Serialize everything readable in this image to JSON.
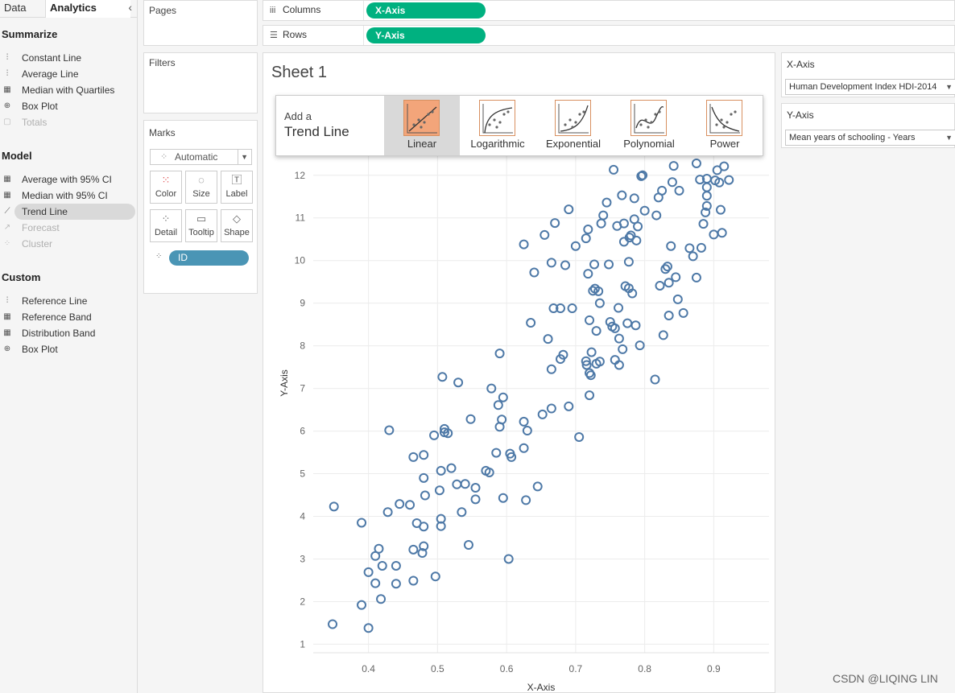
{
  "tabs": {
    "data": "Data",
    "analytics": "Analytics"
  },
  "analytics": {
    "summarize_title": "Summarize",
    "summarize": [
      {
        "label": "Constant Line",
        "icon": "constant-line-icon",
        "disabled": false
      },
      {
        "label": "Average Line",
        "icon": "average-line-icon",
        "disabled": false
      },
      {
        "label": "Median with Quartiles",
        "icon": "median-quartiles-icon",
        "disabled": false
      },
      {
        "label": "Box Plot",
        "icon": "box-plot-icon",
        "disabled": false
      },
      {
        "label": "Totals",
        "icon": "totals-icon",
        "disabled": true
      }
    ],
    "model_title": "Model",
    "model": [
      {
        "label": "Average with 95% CI",
        "icon": "average-ci-icon",
        "disabled": false
      },
      {
        "label": "Median with 95% CI",
        "icon": "median-ci-icon",
        "disabled": false
      },
      {
        "label": "Trend Line",
        "icon": "trend-line-icon",
        "disabled": false,
        "selected": true
      },
      {
        "label": "Forecast",
        "icon": "forecast-icon",
        "disabled": true
      },
      {
        "label": "Cluster",
        "icon": "cluster-icon",
        "disabled": true
      }
    ],
    "custom_title": "Custom",
    "custom": [
      {
        "label": "Reference Line",
        "icon": "reference-line-icon",
        "disabled": false
      },
      {
        "label": "Reference Band",
        "icon": "reference-band-icon",
        "disabled": false
      },
      {
        "label": "Distribution Band",
        "icon": "distribution-band-icon",
        "disabled": false
      },
      {
        "label": "Box Plot",
        "icon": "box-plot-icon",
        "disabled": false
      }
    ]
  },
  "cards": {
    "pages": "Pages",
    "filters": "Filters",
    "marks": "Marks"
  },
  "marks": {
    "type": "Automatic",
    "buttons": [
      {
        "label": "Color",
        "icon": "color-icon"
      },
      {
        "label": "Size",
        "icon": "size-icon"
      },
      {
        "label": "Label",
        "icon": "label-icon"
      },
      {
        "label": "Detail",
        "icon": "detail-icon"
      },
      {
        "label": "Tooltip",
        "icon": "tooltip-icon"
      },
      {
        "label": "Shape",
        "icon": "shape-icon"
      }
    ],
    "detail_pill": "ID"
  },
  "shelves": {
    "columns_label": "Columns",
    "columns_pill": "X-Axis",
    "rows_label": "Rows",
    "rows_pill": "Y-Axis"
  },
  "sheet": {
    "title": "Sheet 1"
  },
  "trend_popup": {
    "add": "Add a",
    "title": "Trend Line",
    "options": [
      "Linear",
      "Logarithmic",
      "Exponential",
      "Polynomial",
      "Power"
    ],
    "selected": "Linear"
  },
  "right": {
    "x_title": "X-Axis",
    "x_value": "Human Development Index HDI-2014",
    "y_title": "Y-Axis",
    "y_value": "Mean years of schooling - Years"
  },
  "colors": {
    "accent_green": "#00b180",
    "pill_blue": "#4a95b5",
    "mark_stroke": "#4e79a7",
    "trend_selected": "#f3a57a"
  },
  "watermark": "CSDN @LIQING LIN",
  "chart_data": {
    "type": "scatter",
    "xlabel": "X-Axis",
    "ylabel": "Y-Axis",
    "xlim": [
      0.32,
      0.98
    ],
    "ylim": [
      0.8,
      12.6
    ],
    "xticks": [
      "0.4",
      "0.5",
      "0.6",
      "0.7",
      "0.8",
      "0.9"
    ],
    "yticks": [
      "1",
      "2",
      "3",
      "4",
      "5",
      "6",
      "7",
      "8",
      "9",
      "10",
      "11",
      "12"
    ],
    "points": [
      [
        0.348,
        1.47
      ],
      [
        0.35,
        4.23
      ],
      [
        0.39,
        1.92
      ],
      [
        0.39,
        3.85
      ],
      [
        0.4,
        1.38
      ],
      [
        0.4,
        2.69
      ],
      [
        0.41,
        2.43
      ],
      [
        0.41,
        3.07
      ],
      [
        0.415,
        3.24
      ],
      [
        0.418,
        2.06
      ],
      [
        0.42,
        2.84
      ],
      [
        0.428,
        4.1
      ],
      [
        0.43,
        6.02
      ],
      [
        0.44,
        2.84
      ],
      [
        0.44,
        2.42
      ],
      [
        0.445,
        4.29
      ],
      [
        0.46,
        4.27
      ],
      [
        0.465,
        2.49
      ],
      [
        0.465,
        5.39
      ],
      [
        0.465,
        3.22
      ],
      [
        0.47,
        3.84
      ],
      [
        0.478,
        3.14
      ],
      [
        0.48,
        3.3
      ],
      [
        0.48,
        5.44
      ],
      [
        0.48,
        4.9
      ],
      [
        0.48,
        3.76
      ],
      [
        0.482,
        4.49
      ],
      [
        0.495,
        5.9
      ],
      [
        0.497,
        2.59
      ],
      [
        0.503,
        4.61
      ],
      [
        0.505,
        5.07
      ],
      [
        0.505,
        3.94
      ],
      [
        0.505,
        3.77
      ],
      [
        0.507,
        7.27
      ],
      [
        0.51,
        6.05
      ],
      [
        0.51,
        5.97
      ],
      [
        0.515,
        5.95
      ],
      [
        0.52,
        5.13
      ],
      [
        0.528,
        4.75
      ],
      [
        0.53,
        7.14
      ],
      [
        0.535,
        4.1
      ],
      [
        0.54,
        4.76
      ],
      [
        0.545,
        3.33
      ],
      [
        0.548,
        6.28
      ],
      [
        0.555,
        4.67
      ],
      [
        0.555,
        4.4
      ],
      [
        0.57,
        5.07
      ],
      [
        0.575,
        5.03
      ],
      [
        0.578,
        7.0
      ],
      [
        0.585,
        5.49
      ],
      [
        0.588,
        6.61
      ],
      [
        0.59,
        6.1
      ],
      [
        0.59,
        7.82
      ],
      [
        0.593,
        6.27
      ],
      [
        0.595,
        4.43
      ],
      [
        0.595,
        6.79
      ],
      [
        0.603,
        3.0
      ],
      [
        0.605,
        5.47
      ],
      [
        0.607,
        5.39
      ],
      [
        0.625,
        5.6
      ],
      [
        0.625,
        6.22
      ],
      [
        0.628,
        4.38
      ],
      [
        0.63,
        6.01
      ],
      [
        0.635,
        8.54
      ],
      [
        0.645,
        4.7
      ],
      [
        0.625,
        10.38
      ],
      [
        0.64,
        9.72
      ],
      [
        0.652,
        6.39
      ],
      [
        0.655,
        10.6
      ],
      [
        0.66,
        8.16
      ],
      [
        0.665,
        9.95
      ],
      [
        0.665,
        7.45
      ],
      [
        0.665,
        6.53
      ],
      [
        0.668,
        8.88
      ],
      [
        0.67,
        10.88
      ],
      [
        0.678,
        8.88
      ],
      [
        0.678,
        7.69
      ],
      [
        0.682,
        7.79
      ],
      [
        0.685,
        9.89
      ],
      [
        0.69,
        6.58
      ],
      [
        0.69,
        11.2
      ],
      [
        0.695,
        8.88
      ],
      [
        0.7,
        10.34
      ],
      [
        0.705,
        5.86
      ],
      [
        0.715,
        10.52
      ],
      [
        0.715,
        7.64
      ],
      [
        0.716,
        7.55
      ],
      [
        0.718,
        10.73
      ],
      [
        0.718,
        9.69
      ],
      [
        0.72,
        8.6
      ],
      [
        0.72,
        6.84
      ],
      [
        0.72,
        7.36
      ],
      [
        0.722,
        7.31
      ],
      [
        0.723,
        7.85
      ],
      [
        0.725,
        9.29
      ],
      [
        0.727,
        9.91
      ],
      [
        0.728,
        9.34
      ],
      [
        0.73,
        7.58
      ],
      [
        0.73,
        8.35
      ],
      [
        0.733,
        9.28
      ],
      [
        0.735,
        7.63
      ],
      [
        0.735,
        9.0
      ],
      [
        0.737,
        10.87
      ],
      [
        0.74,
        11.06
      ],
      [
        0.745,
        11.36
      ],
      [
        0.748,
        9.91
      ],
      [
        0.75,
        8.56
      ],
      [
        0.753,
        8.45
      ],
      [
        0.755,
        12.13
      ],
      [
        0.757,
        7.67
      ],
      [
        0.757,
        8.41
      ],
      [
        0.76,
        10.81
      ],
      [
        0.762,
        8.89
      ],
      [
        0.763,
        7.55
      ],
      [
        0.763,
        8.17
      ],
      [
        0.767,
        11.53
      ],
      [
        0.768,
        7.92
      ],
      [
        0.77,
        10.44
      ],
      [
        0.77,
        10.87
      ],
      [
        0.772,
        9.4
      ],
      [
        0.775,
        8.53
      ],
      [
        0.777,
        9.35
      ],
      [
        0.777,
        9.97
      ],
      [
        0.778,
        10.54
      ],
      [
        0.78,
        10.59
      ],
      [
        0.782,
        9.23
      ],
      [
        0.785,
        11.46
      ],
      [
        0.785,
        10.97
      ],
      [
        0.787,
        8.48
      ],
      [
        0.788,
        10.47
      ],
      [
        0.79,
        10.8
      ],
      [
        0.793,
        8.01
      ],
      [
        0.795,
        11.98
      ],
      [
        0.797,
        12.0
      ],
      [
        0.8,
        11.17
      ],
      [
        0.815,
        7.21
      ],
      [
        0.817,
        11.06
      ],
      [
        0.82,
        11.48
      ],
      [
        0.822,
        9.41
      ],
      [
        0.825,
        11.64
      ],
      [
        0.827,
        8.25
      ],
      [
        0.83,
        9.8
      ],
      [
        0.833,
        9.86
      ],
      [
        0.835,
        8.71
      ],
      [
        0.835,
        9.48
      ],
      [
        0.838,
        10.34
      ],
      [
        0.84,
        11.84
      ],
      [
        0.842,
        12.22
      ],
      [
        0.845,
        9.61
      ],
      [
        0.848,
        9.09
      ],
      [
        0.85,
        11.64
      ],
      [
        0.856,
        8.77
      ],
      [
        0.865,
        10.29
      ],
      [
        0.87,
        10.1
      ],
      [
        0.875,
        9.6
      ],
      [
        0.875,
        12.28
      ],
      [
        0.88,
        11.9
      ],
      [
        0.882,
        10.3
      ],
      [
        0.885,
        10.86
      ],
      [
        0.888,
        11.13
      ],
      [
        0.89,
        11.28
      ],
      [
        0.89,
        11.52
      ],
      [
        0.89,
        11.92
      ],
      [
        0.89,
        11.72
      ],
      [
        0.9,
        10.61
      ],
      [
        0.902,
        11.88
      ],
      [
        0.905,
        12.12
      ],
      [
        0.908,
        11.83
      ],
      [
        0.91,
        11.19
      ],
      [
        0.912,
        10.65
      ],
      [
        0.915,
        12.21
      ],
      [
        0.922,
        11.89
      ]
    ]
  }
}
